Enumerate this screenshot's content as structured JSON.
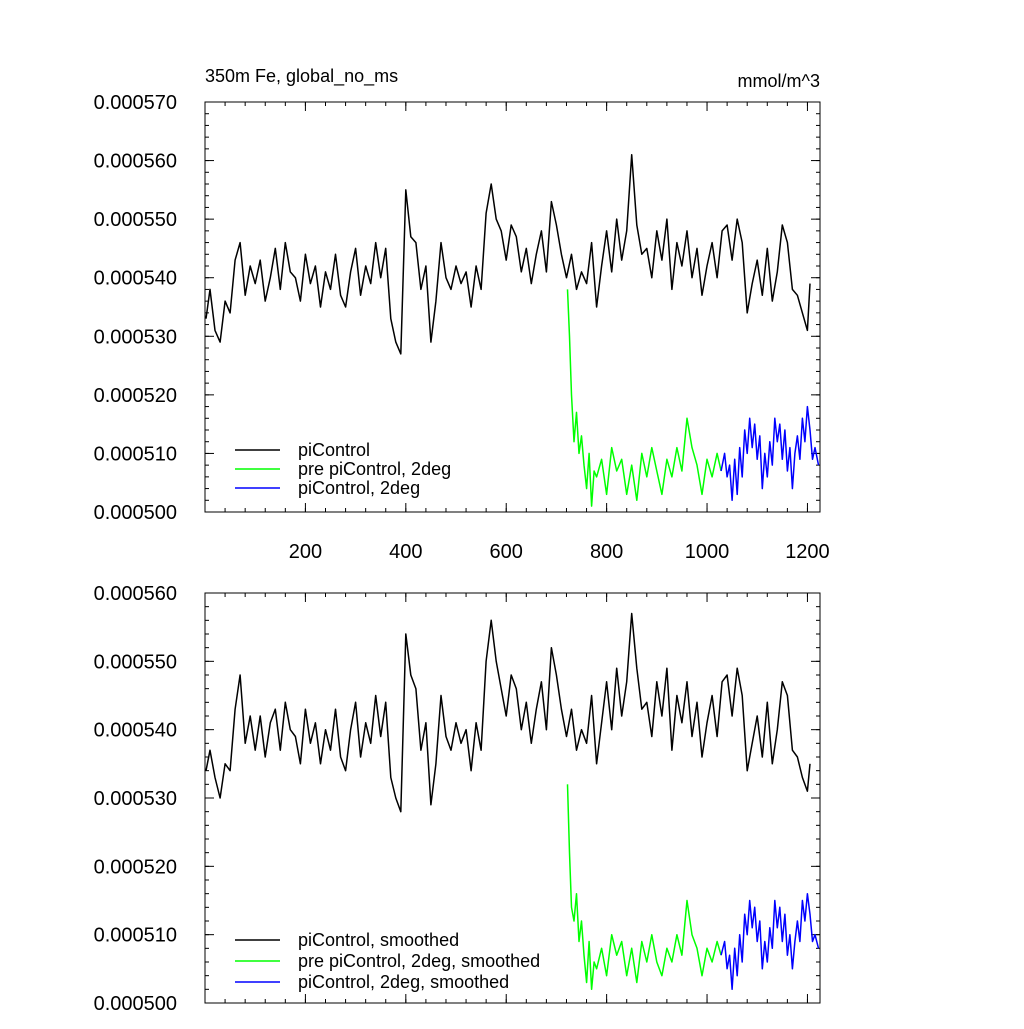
{
  "chart_data": [
    {
      "type": "line",
      "title": "350m Fe, global_no_ms",
      "units": "mmol/m^3",
      "xlim": [
        0,
        1225
      ],
      "ylim": [
        0.0005,
        0.00057
      ],
      "x_ticks": [
        200,
        400,
        600,
        800,
        1000,
        1200
      ],
      "x_tick_labels": [
        "200",
        "400",
        "600",
        "800",
        "1000",
        "1200"
      ],
      "y_ticks": [
        0.0005,
        0.00051,
        0.00052,
        0.00053,
        0.00054,
        0.00055,
        0.00056,
        0.00057
      ],
      "y_tick_labels": [
        "0.000500",
        "0.000510",
        "0.000520",
        "0.000530",
        "0.000540",
        "0.000550",
        "0.000560",
        "0.000570"
      ],
      "legend_position": "bottom-left",
      "series": [
        {
          "name": "piControl",
          "color": "#000000",
          "x": [
            2,
            10,
            20,
            30,
            40,
            50,
            60,
            70,
            80,
            90,
            100,
            110,
            120,
            130,
            140,
            150,
            160,
            170,
            180,
            190,
            200,
            210,
            220,
            230,
            240,
            250,
            260,
            270,
            280,
            290,
            300,
            310,
            320,
            330,
            340,
            350,
            360,
            370,
            380,
            390,
            400,
            410,
            420,
            430,
            440,
            450,
            460,
            470,
            480,
            490,
            500,
            510,
            520,
            530,
            540,
            550,
            560,
            570,
            580,
            590,
            600,
            610,
            620,
            630,
            640,
            650,
            660,
            670,
            680,
            690,
            700,
            710,
            720,
            730,
            740,
            750,
            760,
            770,
            780,
            790,
            800,
            810,
            820,
            830,
            840,
            850,
            860,
            870,
            880,
            890,
            900,
            910,
            920,
            930,
            940,
            950,
            960,
            970,
            980,
            990,
            1000,
            1010,
            1020,
            1030,
            1040,
            1050,
            1060,
            1070,
            1080,
            1090,
            1100,
            1110,
            1120,
            1130,
            1140,
            1150,
            1160,
            1170,
            1180,
            1190,
            1200,
            1205
          ],
          "values": [
            0.000533,
            0.000538,
            0.000531,
            0.000529,
            0.000536,
            0.000534,
            0.000543,
            0.000546,
            0.000537,
            0.000542,
            0.000539,
            0.000543,
            0.000536,
            0.00054,
            0.000545,
            0.000538,
            0.000546,
            0.000541,
            0.00054,
            0.000536,
            0.000544,
            0.000539,
            0.000542,
            0.000535,
            0.000541,
            0.000538,
            0.000544,
            0.000537,
            0.000535,
            0.000541,
            0.000545,
            0.000537,
            0.000542,
            0.000539,
            0.000546,
            0.00054,
            0.000545,
            0.000533,
            0.000529,
            0.000527,
            0.000555,
            0.000547,
            0.000546,
            0.000538,
            0.000542,
            0.000529,
            0.000536,
            0.000546,
            0.00054,
            0.000538,
            0.000542,
            0.000539,
            0.000541,
            0.000535,
            0.000542,
            0.000538,
            0.000551,
            0.000556,
            0.00055,
            0.000548,
            0.000543,
            0.000549,
            0.000547,
            0.000541,
            0.000545,
            0.000539,
            0.000544,
            0.000548,
            0.000541,
            0.000553,
            0.000549,
            0.000544,
            0.00054,
            0.000544,
            0.000538,
            0.000541,
            0.000539,
            0.000546,
            0.000535,
            0.000542,
            0.000548,
            0.000541,
            0.00055,
            0.000543,
            0.000548,
            0.000561,
            0.000549,
            0.000544,
            0.000545,
            0.00054,
            0.000548,
            0.000543,
            0.00055,
            0.000538,
            0.000546,
            0.000542,
            0.000548,
            0.00054,
            0.000545,
            0.000537,
            0.000542,
            0.000546,
            0.00054,
            0.000548,
            0.000549,
            0.000543,
            0.00055,
            0.000546,
            0.000534,
            0.000539,
            0.000543,
            0.000537,
            0.000545,
            0.000536,
            0.000541,
            0.000549,
            0.000546,
            0.000538,
            0.000537,
            0.000534,
            0.000531,
            0.000539
          ]
        },
        {
          "name": "pre piControl, 2deg",
          "color": "#00ff00",
          "x": [
            722,
            726,
            730,
            735,
            740,
            745,
            750,
            755,
            760,
            765,
            770,
            775,
            780,
            790,
            800,
            810,
            820,
            830,
            840,
            850,
            860,
            870,
            880,
            890,
            900,
            910,
            920,
            930,
            940,
            950,
            960,
            970,
            980,
            990,
            1000,
            1010,
            1020,
            1028
          ],
          "values": [
            0.000538,
            0.00053,
            0.00052,
            0.000512,
            0.000517,
            0.00051,
            0.000513,
            0.000508,
            0.000504,
            0.00051,
            0.000501,
            0.000507,
            0.000506,
            0.000509,
            0.000503,
            0.000511,
            0.000507,
            0.000509,
            0.000503,
            0.000508,
            0.000502,
            0.00051,
            0.000506,
            0.000511,
            0.000507,
            0.000503,
            0.000509,
            0.000506,
            0.000511,
            0.000507,
            0.000516,
            0.000511,
            0.000508,
            0.000503,
            0.000509,
            0.000506,
            0.00051,
            0.000507
          ]
        },
        {
          "name": "piControl, 2deg",
          "color": "#0000ff",
          "x": [
            1028,
            1035,
            1040,
            1045,
            1050,
            1055,
            1060,
            1065,
            1070,
            1075,
            1080,
            1085,
            1090,
            1095,
            1100,
            1105,
            1110,
            1115,
            1120,
            1125,
            1130,
            1135,
            1140,
            1145,
            1150,
            1155,
            1160,
            1165,
            1170,
            1175,
            1180,
            1185,
            1190,
            1195,
            1200,
            1205,
            1210,
            1215,
            1222
          ],
          "values": [
            0.000507,
            0.00051,
            0.000506,
            0.000508,
            0.000502,
            0.000509,
            0.000503,
            0.000511,
            0.000506,
            0.000514,
            0.00051,
            0.000516,
            0.000511,
            0.000515,
            0.000509,
            0.000513,
            0.000504,
            0.00051,
            0.000506,
            0.000512,
            0.000508,
            0.000516,
            0.000512,
            0.000515,
            0.000509,
            0.000514,
            0.000507,
            0.000511,
            0.000504,
            0.00051,
            0.000513,
            0.000509,
            0.000516,
            0.000512,
            0.000518,
            0.000514,
            0.000509,
            0.000511,
            0.000508
          ]
        }
      ]
    },
    {
      "type": "line",
      "xlim": [
        0,
        1225
      ],
      "ylim": [
        0.0005,
        0.00056
      ],
      "x_ticks": [
        200,
        400,
        600,
        800,
        1000,
        1200
      ],
      "y_ticks": [
        0.0005,
        0.00051,
        0.00052,
        0.00053,
        0.00054,
        0.00055,
        0.00056
      ],
      "y_tick_labels": [
        "0.000500",
        "0.000510",
        "0.000520",
        "0.000530",
        "0.000540",
        "0.000550",
        "0.000560"
      ],
      "legend_position": "bottom-left",
      "series": [
        {
          "name": "piControl, smoothed",
          "color": "#000000",
          "x": [
            2,
            10,
            20,
            30,
            40,
            50,
            60,
            70,
            80,
            90,
            100,
            110,
            120,
            130,
            140,
            150,
            160,
            170,
            180,
            190,
            200,
            210,
            220,
            230,
            240,
            250,
            260,
            270,
            280,
            290,
            300,
            310,
            320,
            330,
            340,
            350,
            360,
            370,
            380,
            390,
            400,
            410,
            420,
            430,
            440,
            450,
            460,
            470,
            480,
            490,
            500,
            510,
            520,
            530,
            540,
            550,
            560,
            570,
            580,
            590,
            600,
            610,
            620,
            630,
            640,
            650,
            660,
            670,
            680,
            690,
            700,
            710,
            720,
            730,
            740,
            750,
            760,
            770,
            780,
            790,
            800,
            810,
            820,
            830,
            840,
            850,
            860,
            870,
            880,
            890,
            900,
            910,
            920,
            930,
            940,
            950,
            960,
            970,
            980,
            990,
            1000,
            1010,
            1020,
            1030,
            1040,
            1050,
            1060,
            1070,
            1080,
            1090,
            1100,
            1110,
            1120,
            1130,
            1140,
            1150,
            1160,
            1170,
            1180,
            1190,
            1200,
            1205
          ],
          "values": [
            0.000534,
            0.000537,
            0.000533,
            0.00053,
            0.000535,
            0.000534,
            0.000543,
            0.000548,
            0.000538,
            0.000542,
            0.000537,
            0.000542,
            0.000536,
            0.000541,
            0.000543,
            0.000537,
            0.000544,
            0.00054,
            0.000539,
            0.000535,
            0.000543,
            0.000538,
            0.000541,
            0.000535,
            0.00054,
            0.000537,
            0.000543,
            0.000536,
            0.000534,
            0.00054,
            0.000544,
            0.000536,
            0.000541,
            0.000538,
            0.000545,
            0.000539,
            0.000544,
            0.000533,
            0.00053,
            0.000528,
            0.000554,
            0.000548,
            0.000546,
            0.000537,
            0.000541,
            0.000529,
            0.000535,
            0.000545,
            0.000539,
            0.000537,
            0.000541,
            0.000538,
            0.00054,
            0.000534,
            0.000541,
            0.000537,
            0.00055,
            0.000556,
            0.00055,
            0.000546,
            0.000542,
            0.000548,
            0.000546,
            0.00054,
            0.000544,
            0.000538,
            0.000543,
            0.000547,
            0.00054,
            0.000552,
            0.000548,
            0.000543,
            0.000539,
            0.000543,
            0.000537,
            0.00054,
            0.000538,
            0.000545,
            0.000535,
            0.000541,
            0.000547,
            0.00054,
            0.000549,
            0.000542,
            0.000547,
            0.000557,
            0.000549,
            0.000543,
            0.000544,
            0.000539,
            0.000547,
            0.000542,
            0.000549,
            0.000537,
            0.000545,
            0.000541,
            0.000547,
            0.000539,
            0.000544,
            0.000536,
            0.000541,
            0.000545,
            0.000539,
            0.000547,
            0.000548,
            0.000542,
            0.000549,
            0.000545,
            0.000534,
            0.000538,
            0.000542,
            0.000536,
            0.000544,
            0.000535,
            0.00054,
            0.000547,
            0.000545,
            0.000537,
            0.000536,
            0.000533,
            0.000531,
            0.000535
          ]
        },
        {
          "name": "pre piControl, 2deg, smoothed",
          "color": "#00ff00",
          "x": [
            722,
            726,
            730,
            735,
            740,
            745,
            750,
            755,
            760,
            765,
            770,
            775,
            780,
            790,
            800,
            810,
            820,
            830,
            840,
            850,
            860,
            870,
            880,
            890,
            900,
            910,
            920,
            930,
            940,
            950,
            960,
            970,
            980,
            990,
            1000,
            1010,
            1020,
            1028
          ],
          "values": [
            0.000532,
            0.000522,
            0.000514,
            0.000512,
            0.000516,
            0.000509,
            0.000512,
            0.000507,
            0.000503,
            0.000509,
            0.000502,
            0.000506,
            0.000505,
            0.000508,
            0.000504,
            0.00051,
            0.000507,
            0.000509,
            0.000504,
            0.000508,
            0.000503,
            0.000509,
            0.000506,
            0.00051,
            0.000506,
            0.000504,
            0.000508,
            0.000506,
            0.00051,
            0.000507,
            0.000515,
            0.00051,
            0.000508,
            0.000504,
            0.000508,
            0.000506,
            0.000509,
            0.000507
          ]
        },
        {
          "name": "piControl, 2deg, smoothed",
          "color": "#0000ff",
          "x": [
            1028,
            1035,
            1040,
            1045,
            1050,
            1055,
            1060,
            1065,
            1070,
            1075,
            1080,
            1085,
            1090,
            1095,
            1100,
            1105,
            1110,
            1115,
            1120,
            1125,
            1130,
            1135,
            1140,
            1145,
            1150,
            1155,
            1160,
            1165,
            1170,
            1175,
            1180,
            1185,
            1190,
            1195,
            1200,
            1205,
            1210,
            1215,
            1222
          ],
          "values": [
            0.000507,
            0.000509,
            0.000505,
            0.000507,
            0.000502,
            0.000508,
            0.000504,
            0.00051,
            0.000506,
            0.000513,
            0.00051,
            0.000515,
            0.000511,
            0.000514,
            0.000509,
            0.000512,
            0.000505,
            0.000509,
            0.000506,
            0.000511,
            0.000508,
            0.000515,
            0.000511,
            0.000514,
            0.000509,
            0.000513,
            0.000507,
            0.00051,
            0.000505,
            0.000509,
            0.000512,
            0.000509,
            0.000515,
            0.000512,
            0.000516,
            0.000513,
            0.000509,
            0.00051,
            0.000508
          ]
        }
      ]
    }
  ]
}
